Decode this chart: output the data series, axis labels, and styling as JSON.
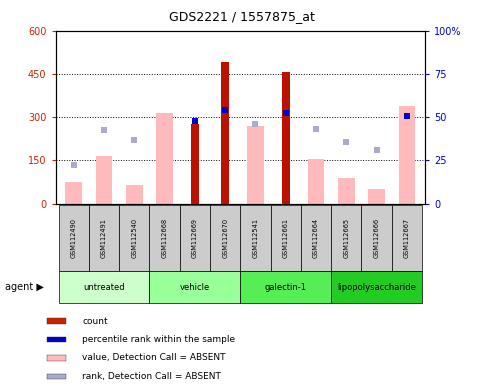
{
  "title": "GDS2221 / 1557875_at",
  "samples": [
    "GSM112490",
    "GSM112491",
    "GSM112540",
    "GSM112668",
    "GSM112669",
    "GSM112670",
    "GSM112541",
    "GSM112661",
    "GSM112664",
    "GSM112665",
    "GSM112666",
    "GSM112667"
  ],
  "groups": [
    {
      "label": "untreated",
      "color": "#ccffcc",
      "start": 0,
      "end": 3
    },
    {
      "label": "vehicle",
      "color": "#99ff99",
      "start": 3,
      "end": 6
    },
    {
      "label": "galectin-1",
      "color": "#55ee55",
      "start": 6,
      "end": 9
    },
    {
      "label": "lipopolysaccharide",
      "color": "#22cc22",
      "start": 9,
      "end": 12
    }
  ],
  "count": [
    null,
    null,
    null,
    null,
    275,
    490,
    null,
    455,
    null,
    null,
    null,
    null
  ],
  "percentile_rank": [
    null,
    null,
    null,
    null,
    285,
    325,
    null,
    315,
    null,
    null,
    null,
    305
  ],
  "value_absent": [
    75,
    165,
    65,
    315,
    null,
    null,
    270,
    null,
    155,
    90,
    50,
    340
  ],
  "rank_absent": [
    135,
    255,
    220,
    null,
    null,
    null,
    275,
    null,
    260,
    215,
    185,
    null
  ],
  "left_yticks": [
    0,
    150,
    300,
    450,
    600
  ],
  "right_yticks": [
    0,
    25,
    50,
    75,
    100
  ],
  "ylim_left": [
    0,
    600
  ],
  "ylim_right": [
    0,
    100
  ],
  "left_ycolor": "#cc2200",
  "right_ycolor": "#0000cc",
  "legend_items": [
    {
      "color": "#cc2200",
      "label": "count"
    },
    {
      "color": "#0000cc",
      "label": "percentile rank within the sample"
    },
    {
      "color": "#ffbbbb",
      "label": "value, Detection Call = ABSENT"
    },
    {
      "color": "#aaaacc",
      "label": "rank, Detection Call = ABSENT"
    }
  ]
}
